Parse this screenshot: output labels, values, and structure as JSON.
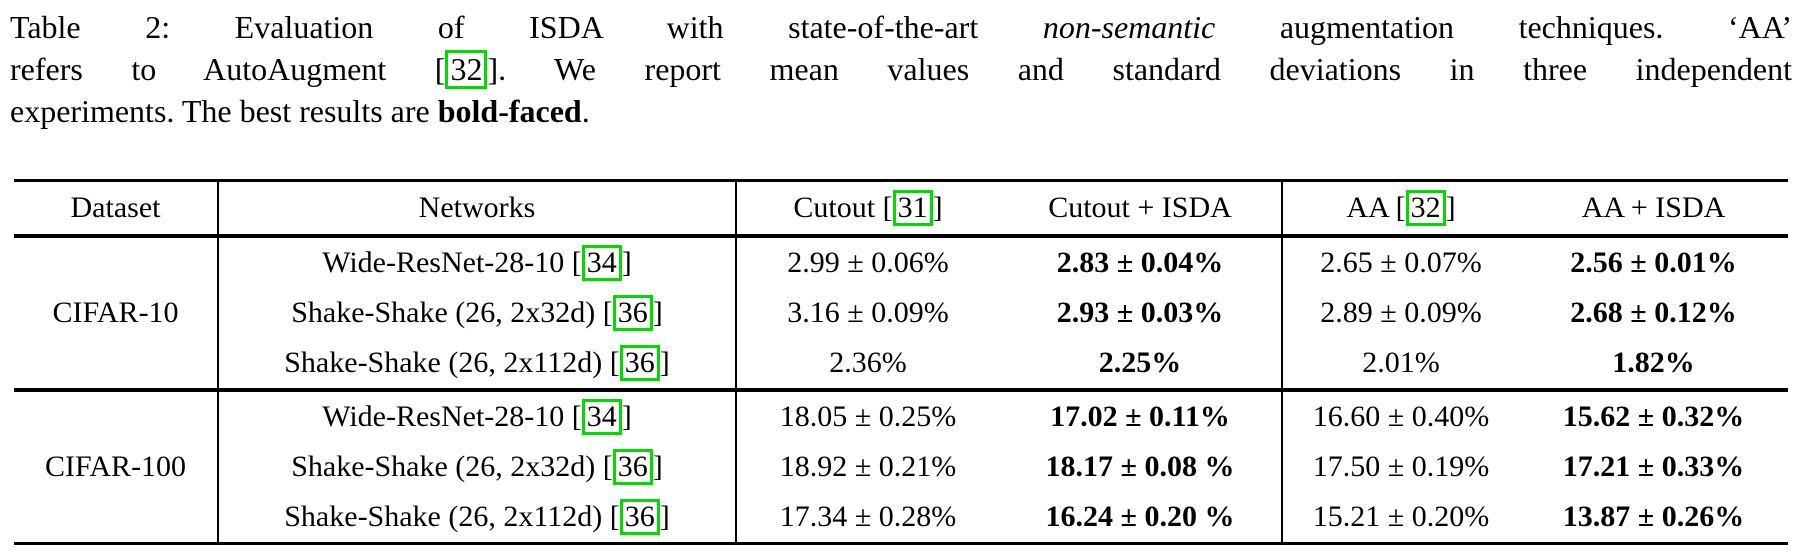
{
  "colors": {
    "citation_box": "#00dc00"
  },
  "caption": {
    "line1": {
      "pre": "Table 2:  Evaluation of ISDA with state-of-the-art ",
      "italic": "non-semantic",
      "post": " augmentation techniques.  ‘AA’"
    },
    "line2": {
      "pre": "refers to AutoAugment ",
      "bracket_open": "[",
      "cite": "32",
      "bracket_close": "]",
      "post": ". We report mean values and standard deviations in three independent"
    },
    "line3": {
      "pre": "experiments. The best results are ",
      "bold": "bold-faced",
      "post": "."
    }
  },
  "table": {
    "punct": {
      "open": "[",
      "close": "]"
    },
    "headers": {
      "dataset": "Dataset",
      "networks": "Networks",
      "cutout": {
        "label": "Cutout",
        "cite": "31"
      },
      "cutout_isda": "Cutout + ISDA",
      "aa": {
        "label": "AA",
        "cite": "32"
      },
      "aa_isda": "AA + ISDA"
    },
    "groups": [
      {
        "dataset": "CIFAR-10",
        "rows": [
          {
            "network": "Wide-ResNet-28-10",
            "cite": "34",
            "cutout": "2.99 ± 0.06%",
            "cutout_isda": "2.83 ± 0.04%",
            "aa": "2.65 ± 0.07%",
            "aa_isda": "2.56 ± 0.01%"
          },
          {
            "network": "Shake-Shake (26, 2x32d)",
            "cite": "36",
            "cutout": "3.16 ± 0.09%",
            "cutout_isda": "2.93 ± 0.03%",
            "aa": "2.89 ± 0.09%",
            "aa_isda": "2.68 ± 0.12%"
          },
          {
            "network": "Shake-Shake (26, 2x112d)",
            "cite": "36",
            "cutout": "2.36%",
            "cutout_isda": "2.25%",
            "aa": "2.01%",
            "aa_isda": "1.82%"
          }
        ]
      },
      {
        "dataset": "CIFAR-100",
        "rows": [
          {
            "network": "Wide-ResNet-28-10",
            "cite": "34",
            "cutout": "18.05 ± 0.25%",
            "cutout_isda": "17.02 ± 0.11%",
            "aa": "16.60 ± 0.40%",
            "aa_isda": "15.62 ± 0.32%"
          },
          {
            "network": "Shake-Shake (26, 2x32d)",
            "cite": "36",
            "cutout": "18.92 ± 0.21%",
            "cutout_isda": "18.17 ± 0.08 %",
            "aa": "17.50 ± 0.19%",
            "aa_isda": "17.21 ± 0.33%"
          },
          {
            "network": "Shake-Shake (26, 2x112d)",
            "cite": "36",
            "cutout": "17.34 ± 0.28%",
            "cutout_isda": "16.24 ± 0.20 %",
            "aa": "15.21 ± 0.20%",
            "aa_isda": "13.87 ± 0.26%"
          }
        ]
      }
    ]
  }
}
